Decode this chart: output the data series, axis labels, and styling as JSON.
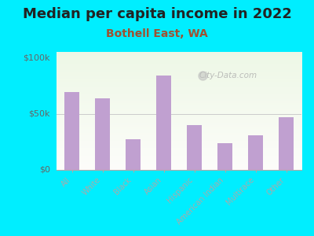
{
  "title": "Median per capita income in 2022",
  "subtitle": "Bothell East, WA",
  "categories": [
    "All",
    "White",
    "Black",
    "Asian",
    "Hispanic",
    "American Indian",
    "Multirace",
    "Other"
  ],
  "values": [
    69000,
    64000,
    27000,
    84000,
    40000,
    24000,
    31000,
    47000
  ],
  "bar_color": "#c0a0d0",
  "background_outer": "#00eeff",
  "yticks": [
    0,
    50000,
    100000
  ],
  "ytick_labels": [
    "$0",
    "$50k",
    "$100k"
  ],
  "ylim": [
    0,
    105000
  ],
  "title_fontsize": 13,
  "subtitle_fontsize": 10,
  "subtitle_color": "#a05030",
  "tick_label_color": "#888888",
  "ytick_outside_color": "#666666",
  "watermark": "City-Data.com"
}
